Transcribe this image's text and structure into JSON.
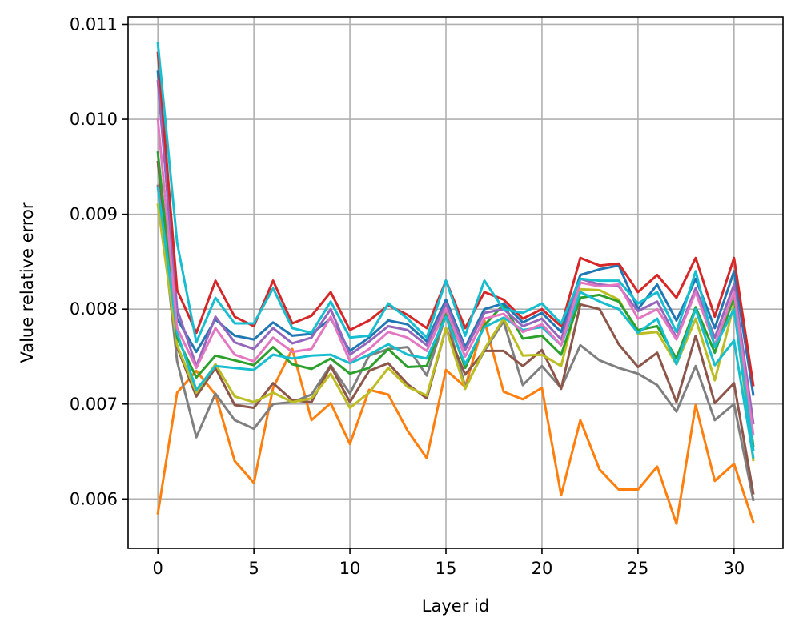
{
  "chart_data": {
    "type": "line",
    "xlabel": "Layer id",
    "ylabel": "Value relative error",
    "xlim": [
      -1.55,
      32.55
    ],
    "ylim": [
      0.00548,
      0.01108
    ],
    "xticks": [
      0,
      5,
      10,
      15,
      20,
      25,
      30
    ],
    "yticks": [
      0.006,
      0.007,
      0.008,
      0.009,
      0.01,
      0.011
    ],
    "ytick_labels": [
      "0.006",
      "0.007",
      "0.008",
      "0.009",
      "0.010",
      "0.011"
    ],
    "grid": true,
    "x": [
      0,
      1,
      2,
      3,
      4,
      5,
      6,
      7,
      8,
      9,
      10,
      11,
      12,
      13,
      14,
      15,
      16,
      17,
      18,
      19,
      20,
      21,
      22,
      23,
      24,
      25,
      26,
      27,
      28,
      29,
      30,
      31
    ],
    "series": [
      {
        "color": "#ff7f0e",
        "values": [
          0.00585,
          0.00712,
          0.00735,
          0.0071,
          0.0064,
          0.00617,
          0.00717,
          0.00758,
          0.00683,
          0.00701,
          0.00658,
          0.00715,
          0.0071,
          0.00672,
          0.00643,
          0.00736,
          0.00718,
          0.00788,
          0.00713,
          0.00705,
          0.00717,
          0.00604,
          0.00683,
          0.00631,
          0.0061,
          0.0061,
          0.00634,
          0.00574,
          0.00699,
          0.00619,
          0.00637,
          0.00576
        ]
      },
      {
        "color": "#7f7f7f",
        "values": [
          0.0093,
          0.00745,
          0.00665,
          0.00711,
          0.00683,
          0.00674,
          0.007,
          0.00702,
          0.0071,
          0.00741,
          0.00711,
          0.00751,
          0.00758,
          0.0076,
          0.0073,
          0.00794,
          0.00718,
          0.00756,
          0.00787,
          0.0072,
          0.0074,
          0.00717,
          0.00762,
          0.00746,
          0.00738,
          0.00732,
          0.0072,
          0.00692,
          0.0074,
          0.00683,
          0.007,
          0.00599
        ]
      },
      {
        "color": "#8c564b",
        "values": [
          0.00955,
          0.0076,
          0.00708,
          0.00738,
          0.00699,
          0.00696,
          0.00722,
          0.00704,
          0.00702,
          0.0074,
          0.00702,
          0.00735,
          0.00743,
          0.00721,
          0.00706,
          0.0078,
          0.00731,
          0.00756,
          0.00756,
          0.0074,
          0.00757,
          0.00716,
          0.00805,
          0.008,
          0.00763,
          0.00739,
          0.00754,
          0.00702,
          0.00772,
          0.00701,
          0.00722,
          0.00606
        ]
      },
      {
        "color": "#bcbd22",
        "values": [
          0.0091,
          0.00762,
          0.00712,
          0.00742,
          0.00708,
          0.00702,
          0.00712,
          0.00702,
          0.00706,
          0.00732,
          0.00696,
          0.00712,
          0.00738,
          0.00718,
          0.00709,
          0.0078,
          0.00716,
          0.00758,
          0.0079,
          0.00751,
          0.00752,
          0.0074,
          0.00821,
          0.0082,
          0.0081,
          0.00774,
          0.00776,
          0.00742,
          0.0079,
          0.00725,
          0.00805,
          0.00641
        ]
      },
      {
        "color": "#2ca02c",
        "values": [
          0.00965,
          0.0077,
          0.00728,
          0.00751,
          0.00746,
          0.00741,
          0.0076,
          0.00742,
          0.00737,
          0.00748,
          0.00732,
          0.00738,
          0.00758,
          0.00739,
          0.0074,
          0.00797,
          0.00738,
          0.00783,
          0.00805,
          0.00769,
          0.00772,
          0.00752,
          0.00812,
          0.00815,
          0.00808,
          0.00778,
          0.00782,
          0.00748,
          0.00802,
          0.00754,
          0.00813,
          0.00656
        ]
      },
      {
        "color": "#17becf",
        "values": [
          0.00928,
          0.00775,
          0.00715,
          0.0074,
          0.00738,
          0.00736,
          0.00752,
          0.00748,
          0.00751,
          0.00752,
          0.00743,
          0.00752,
          0.00763,
          0.00752,
          0.00748,
          0.00792,
          0.00742,
          0.00781,
          0.00791,
          0.00778,
          0.00781,
          0.00762,
          0.00818,
          0.00808,
          0.008,
          0.00775,
          0.0079,
          0.00742,
          0.008,
          0.00741,
          0.00767,
          0.00644
        ]
      },
      {
        "color": "#1f77b4",
        "values": [
          0.0105,
          0.0079,
          0.00755,
          0.00789,
          0.00772,
          0.00768,
          0.00786,
          0.00772,
          0.00774,
          0.0079,
          0.00756,
          0.0077,
          0.00788,
          0.00784,
          0.00766,
          0.0081,
          0.0076,
          0.008,
          0.00806,
          0.00786,
          0.00796,
          0.00776,
          0.00836,
          0.00842,
          0.00846,
          0.008,
          0.00826,
          0.00788,
          0.00832,
          0.0078,
          0.0084,
          0.0071
        ]
      },
      {
        "color": "#9467bd",
        "values": [
          0.0104,
          0.008,
          0.0074,
          0.00792,
          0.00765,
          0.00758,
          0.0078,
          0.00764,
          0.0077,
          0.008,
          0.00752,
          0.00766,
          0.00782,
          0.00778,
          0.00762,
          0.00806,
          0.00757,
          0.00796,
          0.008,
          0.00782,
          0.0079,
          0.00768,
          0.00832,
          0.00826,
          0.00824,
          0.00798,
          0.00808,
          0.0077,
          0.00822,
          0.0077,
          0.00826,
          0.0068
        ]
      },
      {
        "color": "#e377c2",
        "values": [
          0.01,
          0.0078,
          0.00738,
          0.0078,
          0.00752,
          0.00745,
          0.0077,
          0.00755,
          0.00758,
          0.00792,
          0.00745,
          0.00758,
          0.00776,
          0.0077,
          0.00756,
          0.008,
          0.0075,
          0.0079,
          0.00795,
          0.00776,
          0.00784,
          0.00762,
          0.00828,
          0.00824,
          0.00826,
          0.0079,
          0.008,
          0.00768,
          0.00818,
          0.00762,
          0.00818,
          0.00668
        ]
      },
      {
        "color": "#d62728",
        "values": [
          0.0107,
          0.0082,
          0.00775,
          0.0083,
          0.00792,
          0.00782,
          0.0083,
          0.00785,
          0.00793,
          0.00818,
          0.00778,
          0.00788,
          0.00804,
          0.00794,
          0.0078,
          0.0083,
          0.0078,
          0.00818,
          0.0081,
          0.0079,
          0.008,
          0.00782,
          0.00854,
          0.00846,
          0.00848,
          0.00818,
          0.00836,
          0.00812,
          0.00854,
          0.00792,
          0.00854,
          0.0072
        ]
      },
      {
        "color": "#17becf",
        "values": [
          0.0108,
          0.0087,
          0.00765,
          0.00812,
          0.00785,
          0.00785,
          0.00822,
          0.0078,
          0.00775,
          0.00808,
          0.0077,
          0.00772,
          0.00806,
          0.0079,
          0.0077,
          0.0083,
          0.00772,
          0.0083,
          0.008,
          0.00796,
          0.00806,
          0.00785,
          0.00832,
          0.0083,
          0.0083,
          0.00806,
          0.00818,
          0.00776,
          0.0084,
          0.0076,
          0.008,
          0.00652
        ]
      }
    ]
  }
}
